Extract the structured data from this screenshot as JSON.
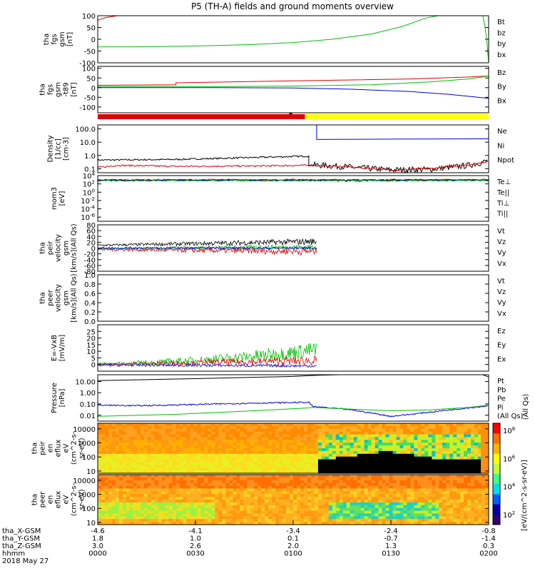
{
  "title": "P5 (TH-A) fields and ground moments overview",
  "colors": {
    "red": "#e00000",
    "green": "#00c000",
    "blue": "#0000e0",
    "black": "#000000",
    "yellow": "#ffff00"
  },
  "chart_data": [
    {
      "type": "line",
      "panel": "fgs_gsm",
      "ylabel": [
        "tha",
        "fgs",
        "gsm",
        "[nT]"
      ],
      "ylim": [
        -100,
        100
      ],
      "yticks": [
        "100",
        "50",
        "0",
        "-50",
        "-100"
      ],
      "legend": [
        {
          "name": "Bt",
          "color": "#000000"
        },
        {
          "name": "bz",
          "color": "#e00000"
        },
        {
          "name": "by",
          "color": "#00c000"
        },
        {
          "name": "bx",
          "color": "#0000e0"
        }
      ],
      "series": [
        {
          "name": "bz",
          "color": "#e00000",
          "points": [
            [
              0,
              80
            ],
            [
              0.005,
              84
            ],
            [
              0.02,
              92
            ],
            [
              0.05,
              100
            ]
          ]
        },
        {
          "name": "by",
          "color": "#00c000",
          "points": [
            [
              0,
              -32
            ],
            [
              0.1,
              -32
            ],
            [
              0.2,
              -30
            ],
            [
              0.3,
              -27
            ],
            [
              0.4,
              -22
            ],
            [
              0.5,
              -14
            ],
            [
              0.6,
              0
            ],
            [
              0.7,
              22
            ],
            [
              0.78,
              55
            ],
            [
              0.84,
              90
            ],
            [
              0.87,
              100
            ]
          ]
        },
        {
          "name": "by_end",
          "color": "#00c000",
          "points": [
            [
              0.985,
              100
            ],
            [
              0.99,
              60
            ],
            [
              0.995,
              0
            ],
            [
              1.0,
              -100
            ]
          ]
        }
      ]
    },
    {
      "type": "line",
      "panel": "fgs_gsm_t89",
      "ylabel": [
        "tha",
        "fgs",
        "gsm",
        "-t89",
        "[nT]"
      ],
      "ylim": [
        -130,
        110
      ],
      "yticks": [
        "100",
        "50",
        "0",
        "-50",
        "-100"
      ],
      "legend": [
        {
          "name": "Bz",
          "color": "#e00000"
        },
        {
          "name": "By",
          "color": "#00c000"
        },
        {
          "name": "Bx",
          "color": "#0000e0"
        }
      ],
      "series": [
        {
          "name": "Bz",
          "color": "#e00000",
          "points": [
            [
              0,
              12
            ],
            [
              0.2,
              15
            ],
            [
              0.2,
              25
            ],
            [
              0.5,
              35
            ],
            [
              0.8,
              45
            ],
            [
              0.95,
              55
            ],
            [
              1.0,
              60
            ]
          ]
        },
        {
          "name": "By",
          "color": "#00c000",
          "points": [
            [
              0,
              5
            ],
            [
              0.3,
              6
            ],
            [
              0.5,
              8
            ],
            [
              0.7,
              15
            ],
            [
              0.85,
              30
            ],
            [
              0.95,
              45
            ],
            [
              1.0,
              60
            ]
          ]
        },
        {
          "name": "Bx",
          "color": "#0000e0",
          "points": [
            [
              0,
              0
            ],
            [
              0.3,
              0
            ],
            [
              0.5,
              -2
            ],
            [
              0.65,
              -8
            ],
            [
              0.8,
              -20
            ],
            [
              0.9,
              -35
            ],
            [
              1.0,
              -55
            ]
          ]
        }
      ]
    },
    {
      "type": "line",
      "panel": "density",
      "ylabel": [
        "Density",
        "[1/cc]",
        "[cm-3]"
      ],
      "log": true,
      "ylim": [
        0.05,
        200
      ],
      "yticks": [
        "100.0",
        "10.0",
        "1.0",
        "0.1"
      ],
      "legend": [
        {
          "name": "Ne",
          "color": "#e00000"
        },
        {
          "name": "Ni",
          "color": "#000000"
        },
        {
          "name": "Npot",
          "color": "#0000e0"
        }
      ],
      "series": [
        {
          "name": "Ni",
          "color": "#000000",
          "points": [
            [
              0,
              0.45
            ],
            [
              0.2,
              0.5
            ],
            [
              0.4,
              0.7
            ],
            [
              0.54,
              0.9
            ],
            [
              0.54,
              0.2
            ],
            [
              0.62,
              0.15
            ],
            [
              0.75,
              0.08
            ],
            [
              0.85,
              0.09
            ],
            [
              0.95,
              0.18
            ],
            [
              1.0,
              0.4
            ]
          ]
        },
        {
          "name": "Ne",
          "color": "#e00000",
          "points": [
            [
              0,
              0.12
            ],
            [
              0.05,
              0.18
            ],
            [
              0.2,
              0.15
            ],
            [
              0.4,
              0.16
            ],
            [
              0.54,
              0.18
            ],
            [
              0.62,
              0.15
            ],
            [
              0.75,
              0.08
            ],
            [
              0.85,
              0.1
            ],
            [
              0.95,
              0.2
            ],
            [
              1.0,
              0.35
            ]
          ]
        },
        {
          "name": "Npot",
          "color": "#0000e0",
          "points": [
            [
              0.55,
              200
            ],
            [
              0.56,
              200
            ],
            [
              0.56,
              16
            ],
            [
              0.75,
              17
            ],
            [
              1.0,
              18
            ]
          ]
        }
      ]
    },
    {
      "type": "line",
      "panel": "temperature",
      "ylabel": [
        "mom3",
        "[eV]"
      ],
      "log": true,
      "ylim": [
        1e-07,
        10000.0
      ],
      "yticks": [
        "10^4",
        "10^2",
        "10^0",
        "10^-2",
        "10^-4",
        "10^-6"
      ],
      "legend": [
        {
          "name": "Te⊥",
          "color": "#e00000"
        },
        {
          "name": "Te||",
          "color": "#000000"
        },
        {
          "name": "Ti⊥",
          "color": "#0000e0"
        },
        {
          "name": "Ti||",
          "color": "#00c000"
        }
      ]
    },
    {
      "type": "line",
      "panel": "peir_velocity",
      "ylabel": [
        "tha",
        "peir",
        "velocity",
        "gsm",
        "[km/s](All Qs)"
      ],
      "ylim": [
        -80,
        80
      ],
      "yticks": [
        "80",
        "60",
        "40",
        "20",
        "0",
        "-20",
        "-40",
        "-60",
        "-80"
      ],
      "legend": [
        {
          "name": "Vt",
          "color": "#000000"
        },
        {
          "name": "Vz",
          "color": "#e00000"
        },
        {
          "name": "Vy",
          "color": "#00c000"
        },
        {
          "name": "Vx",
          "color": "#0000e0"
        }
      ],
      "series": [
        {
          "name": "Vt",
          "color": "#000000",
          "x_end": 0.56
        },
        {
          "name": "Vy",
          "color": "#00c000",
          "x_end": 0.56
        },
        {
          "name": "Vz",
          "color": "#e00000",
          "x_end": 0.56
        },
        {
          "name": "Vx",
          "color": "#0000e0",
          "x_end": 0.56
        }
      ]
    },
    {
      "type": "line",
      "panel": "peer_velocity",
      "ylabel": [
        "tha",
        "peer",
        "velocity",
        "gsm",
        "[km/s](All Qs)"
      ],
      "ylim": [
        0,
        1
      ],
      "yticks": [
        "1.0",
        "0.8",
        "0.6",
        "0.4",
        "0.2",
        "0.0"
      ],
      "legend": [
        {
          "name": "Vt",
          "color": "#000000"
        },
        {
          "name": "Vz",
          "color": "#e00000"
        },
        {
          "name": "Vy",
          "color": "#00c000"
        },
        {
          "name": "Vx",
          "color": "#0000e0"
        }
      ]
    },
    {
      "type": "line",
      "panel": "efield",
      "ylabel": [
        "E=-VxB",
        "[mV/m]"
      ],
      "ylim": [
        -5,
        30
      ],
      "yticks": [
        "25",
        "20",
        "15",
        "10",
        "5",
        "0"
      ],
      "legend": [
        {
          "name": "Ez",
          "color": "#e00000"
        },
        {
          "name": "Ey",
          "color": "#00c000"
        },
        {
          "name": "Ex",
          "color": "#0000e0"
        }
      ],
      "series": [
        {
          "name": "Ey",
          "color": "#00c000",
          "x_end": 0.56
        },
        {
          "name": "Ez",
          "color": "#e00000",
          "x_end": 0.56
        },
        {
          "name": "Ex",
          "color": "#0000e0",
          "x_end": 0.56
        }
      ]
    },
    {
      "type": "line",
      "panel": "pressure",
      "ylabel": [
        "Pressure",
        "[nPa]"
      ],
      "log": true,
      "ylim": [
        0.003,
        40
      ],
      "yticks": [
        "10.00",
        "1.00",
        "0.10",
        "0.01"
      ],
      "legend": [
        {
          "name": "Pt",
          "color": "#000000"
        },
        {
          "name": "Pb",
          "color": "#e00000"
        },
        {
          "name": "Pe",
          "color": "#00c000"
        },
        {
          "name": "Pi",
          "color": "#0000e0"
        },
        {
          "name": "(All Qs)",
          "color": "#000000"
        }
      ],
      "series": [
        {
          "name": "Pt",
          "color": "#000000",
          "points": [
            [
              0,
              12
            ],
            [
              0.25,
              18
            ],
            [
              0.5,
              28
            ],
            [
              0.56,
              36
            ],
            [
              0.62,
              40
            ]
          ]
        },
        {
          "name": "Pt_end",
          "color": "#000000",
          "points": [
            [
              0.985,
              40
            ],
            [
              1.0,
              25
            ]
          ]
        },
        {
          "name": "Pi",
          "color": "#0000e0",
          "points": [
            [
              0,
              0.08
            ],
            [
              0.1,
              0.07
            ],
            [
              0.25,
              0.09
            ],
            [
              0.4,
              0.12
            ],
            [
              0.54,
              0.14
            ],
            [
              0.55,
              0.06
            ],
            [
              0.65,
              0.03
            ],
            [
              0.72,
              0.012
            ],
            [
              0.75,
              0.008
            ],
            [
              0.8,
              0.012
            ],
            [
              0.9,
              0.03
            ],
            [
              1.0,
              0.07
            ]
          ]
        },
        {
          "name": "Pe",
          "color": "#00c000",
          "points": [
            [
              0,
              0.008
            ],
            [
              0.2,
              0.012
            ],
            [
              0.4,
              0.025
            ],
            [
              0.54,
              0.045
            ],
            [
              0.55,
              0.05
            ],
            [
              0.65,
              0.035
            ],
            [
              0.75,
              0.025
            ],
            [
              0.85,
              0.03
            ],
            [
              0.95,
              0.05
            ],
            [
              1.0,
              0.08
            ]
          ]
        }
      ]
    },
    {
      "type": "heatmap",
      "panel": "peir_eflux",
      "ylabel": [
        "tha",
        "peir",
        "en",
        "eflux",
        "eV",
        "(cm^2-s-",
        "sr-eV)"
      ],
      "log": true,
      "ylim": [
        7,
        25000
      ],
      "yticks": [
        "10000",
        "1000",
        "100",
        "10"
      ]
    },
    {
      "type": "heatmap",
      "panel": "peer_eflux",
      "ylabel": [
        "tha",
        "peer",
        "en",
        "eflux",
        "eV",
        "(cm^2-s-",
        "sr-eV)"
      ],
      "log": true,
      "ylim": [
        7,
        25000
      ],
      "yticks": [
        "10000",
        "1000",
        "100",
        "10"
      ],
      "colorbar": {
        "label": "[eV/(cm^2-s-sr-eV)]",
        "ticks": [
          "10^8",
          "10^6",
          "10^4",
          "10^2"
        ]
      }
    }
  ],
  "x_axis": {
    "rows": [
      {
        "label": "tha_X-GSM",
        "values": [
          "-4.6",
          "-4.1",
          "-3.4",
          "-2.4",
          "-0.8"
        ]
      },
      {
        "label": "tha_Y-GSM",
        "values": [
          "1.8",
          "1.0",
          "0.1",
          "-0.7",
          "-1.4"
        ]
      },
      {
        "label": "tha_Z-GSM",
        "values": [
          "3.0",
          "2.6",
          "2.0",
          "1.3",
          "0.3"
        ]
      },
      {
        "label": "hhmm",
        "values": [
          "0000",
          "0030",
          "0100",
          "0130",
          "0200"
        ]
      }
    ],
    "date": "2018 May 27"
  },
  "side_colorbar_label_1": "[eV/(cm^2-s-sr-eV)]",
  "side_colorbar_label_2": "(All Qs)"
}
